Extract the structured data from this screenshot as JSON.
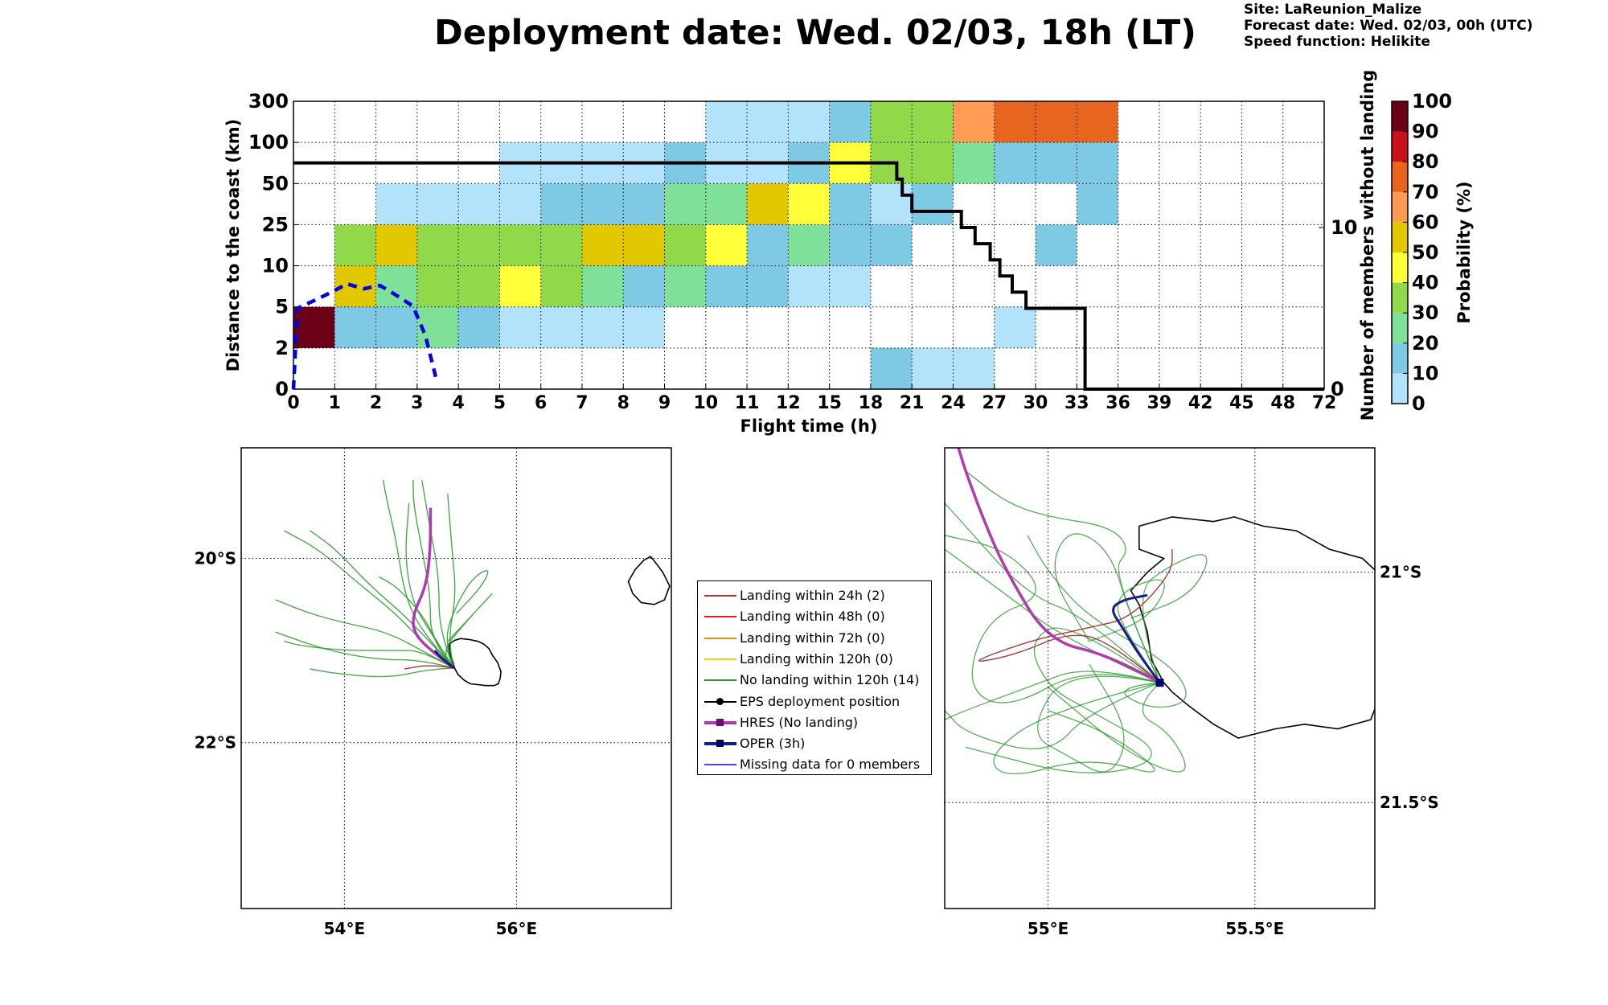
{
  "header": {
    "title": "Deployment date: Wed. 02/03, 18h (LT)",
    "site": "Site: LaReunion_Malize",
    "forecast_date": "Forecast date: Wed. 02/03, 00h (UTC)",
    "speed_function": "Speed function: Helikite"
  },
  "colors": {
    "p0_10": "#b3e3fa",
    "p10_20": "#7ec9e3",
    "p20_30": "#7fe09a",
    "p30_40": "#92d94a",
    "p40_50": "#ffff3a",
    "p50_60": "#e2c800",
    "p60_70": "#ff9b52",
    "p70_80": "#e8651f",
    "p80_90": "#c8111a",
    "p90_100": "#6c0116",
    "members_line": "#000000",
    "blue_dashed": "#0000e0",
    "hres": "#b03ab0",
    "oper": "#1a1a90",
    "green_tracks": "#2a9a2a",
    "red_tracks": "#a83a3a"
  },
  "chart_data": [
    {
      "type": "heatmap",
      "name": "distance-probability",
      "xlabel": "Flight time (h)",
      "ylabel": "Distance to the coast (km)",
      "y2label": "Number of members without landing",
      "colorbar_label": "Probability (%)",
      "x_ticks": [
        "0",
        "1",
        "2",
        "3",
        "4",
        "5",
        "6",
        "7",
        "8",
        "9",
        "10",
        "11",
        "12",
        "15",
        "18",
        "21",
        "24",
        "27",
        "30",
        "33",
        "36",
        "39",
        "42",
        "45",
        "48",
        "72"
      ],
      "y_ticks": [
        "0",
        "2",
        "5",
        "10",
        "25",
        "50",
        "100",
        "300"
      ],
      "y2_ticks": [
        "0",
        "10"
      ],
      "y2_range": [
        0,
        16
      ],
      "colorbar_ticks": [
        "0",
        "10",
        "20",
        "30",
        "40",
        "50",
        "60",
        "70",
        "80",
        "90",
        "100"
      ],
      "grid": true,
      "rows": [
        {
          "y_bin": "0-2",
          "cells": [
            [
              18,
              21,
              "p10_20"
            ],
            [
              21,
              24,
              "p0_10"
            ],
            [
              24,
              27,
              "p0_10"
            ]
          ]
        },
        {
          "y_bin": "2-5",
          "cells": [
            [
              0,
              1,
              "p90_100"
            ],
            [
              1,
              2,
              "p10_20"
            ],
            [
              2,
              3,
              "p10_20"
            ],
            [
              3,
              4,
              "p20_30"
            ],
            [
              4,
              5,
              "p10_20"
            ],
            [
              5,
              6,
              "p0_10"
            ],
            [
              6,
              7,
              "p0_10"
            ],
            [
              7,
              8,
              "p0_10"
            ],
            [
              8,
              9,
              "p0_10"
            ],
            [
              27,
              30,
              "p0_10"
            ]
          ]
        },
        {
          "y_bin": "5-10",
          "cells": [
            [
              1,
              2,
              "p50_60"
            ],
            [
              2,
              3,
              "p20_30"
            ],
            [
              3,
              4,
              "p30_40"
            ],
            [
              4,
              5,
              "p30_40"
            ],
            [
              5,
              6,
              "p40_50"
            ],
            [
              6,
              7,
              "p30_40"
            ],
            [
              7,
              8,
              "p20_30"
            ],
            [
              8,
              9,
              "p10_20"
            ],
            [
              9,
              10,
              "p20_30"
            ],
            [
              10,
              11,
              "p10_20"
            ],
            [
              11,
              12,
              "p10_20"
            ],
            [
              12,
              15,
              "p0_10"
            ],
            [
              15,
              18,
              "p0_10"
            ]
          ]
        },
        {
          "y_bin": "10-25",
          "cells": [
            [
              1,
              2,
              "p30_40"
            ],
            [
              2,
              3,
              "p50_60"
            ],
            [
              3,
              4,
              "p30_40"
            ],
            [
              4,
              5,
              "p30_40"
            ],
            [
              5,
              6,
              "p30_40"
            ],
            [
              6,
              7,
              "p30_40"
            ],
            [
              7,
              8,
              "p50_60"
            ],
            [
              8,
              9,
              "p50_60"
            ],
            [
              9,
              10,
              "p30_40"
            ],
            [
              10,
              11,
              "p40_50"
            ],
            [
              11,
              12,
              "p10_20"
            ],
            [
              12,
              15,
              "p20_30"
            ],
            [
              15,
              18,
              "p10_20"
            ],
            [
              18,
              21,
              "p10_20"
            ],
            [
              30,
              33,
              "p10_20"
            ]
          ]
        },
        {
          "y_bin": "25-50",
          "cells": [
            [
              2,
              3,
              "p0_10"
            ],
            [
              3,
              4,
              "p0_10"
            ],
            [
              4,
              5,
              "p0_10"
            ],
            [
              5,
              6,
              "p0_10"
            ],
            [
              6,
              7,
              "p10_20"
            ],
            [
              7,
              8,
              "p10_20"
            ],
            [
              8,
              9,
              "p10_20"
            ],
            [
              9,
              10,
              "p20_30"
            ],
            [
              10,
              11,
              "p20_30"
            ],
            [
              11,
              12,
              "p50_60"
            ],
            [
              12,
              15,
              "p40_50"
            ],
            [
              15,
              18,
              "p10_20"
            ],
            [
              18,
              21,
              "p0_10"
            ],
            [
              21,
              24,
              "p10_20"
            ],
            [
              33,
              36,
              "p10_20"
            ]
          ]
        },
        {
          "y_bin": "50-100",
          "cells": [
            [
              5,
              6,
              "p0_10"
            ],
            [
              6,
              7,
              "p0_10"
            ],
            [
              7,
              8,
              "p0_10"
            ],
            [
              8,
              9,
              "p0_10"
            ],
            [
              9,
              10,
              "p10_20"
            ],
            [
              10,
              11,
              "p0_10"
            ],
            [
              11,
              12,
              "p0_10"
            ],
            [
              12,
              15,
              "p10_20"
            ],
            [
              15,
              18,
              "p40_50"
            ],
            [
              18,
              21,
              "p30_40"
            ],
            [
              21,
              24,
              "p30_40"
            ],
            [
              24,
              27,
              "p20_30"
            ],
            [
              27,
              30,
              "p10_20"
            ],
            [
              30,
              33,
              "p10_20"
            ],
            [
              33,
              36,
              "p10_20"
            ]
          ]
        },
        {
          "y_bin": "100-300",
          "cells": [
            [
              10,
              11,
              "p0_10"
            ],
            [
              11,
              12,
              "p0_10"
            ],
            [
              12,
              15,
              "p0_10"
            ],
            [
              15,
              18,
              "p10_20"
            ],
            [
              18,
              21,
              "p30_40"
            ],
            [
              21,
              24,
              "p30_40"
            ],
            [
              24,
              27,
              "p60_70"
            ],
            [
              27,
              30,
              "p70_80"
            ],
            [
              30,
              33,
              "p70_80"
            ],
            [
              33,
              36,
              "p70_80"
            ]
          ]
        }
      ],
      "members_without_landing_step": [
        [
          0,
          14
        ],
        [
          19.9,
          14
        ],
        [
          19.9,
          13
        ],
        [
          20.3,
          13
        ],
        [
          20.3,
          12
        ],
        [
          21,
          12
        ],
        [
          21,
          11
        ],
        [
          24.6,
          11
        ],
        [
          24.6,
          10
        ],
        [
          25.6,
          10
        ],
        [
          25.6,
          9
        ],
        [
          26.7,
          9
        ],
        [
          26.7,
          8
        ],
        [
          27.4,
          8
        ],
        [
          27.4,
          7
        ],
        [
          28.3,
          7
        ],
        [
          28.3,
          6
        ],
        [
          29.3,
          6
        ],
        [
          29.3,
          5
        ],
        [
          33.6,
          5
        ],
        [
          33.6,
          0
        ],
        [
          72,
          0
        ]
      ],
      "blue_dashed_curve_km": [
        [
          0,
          0
        ],
        [
          0.1,
          4.9
        ],
        [
          0.6,
          6.0
        ],
        [
          1.0,
          7.0
        ],
        [
          1.3,
          7.8
        ],
        [
          1.7,
          7.2
        ],
        [
          2.1,
          7.6
        ],
        [
          2.5,
          6.4
        ],
        [
          2.9,
          5.1
        ],
        [
          3.2,
          2.9
        ],
        [
          3.45,
          0.6
        ]
      ]
    },
    {
      "type": "map",
      "name": "large-scale-trajectories",
      "x_ticks": [
        "54°E",
        "56°E"
      ],
      "y_ticks": [
        "20°S",
        "22°S"
      ],
      "lon_range": [
        52.8,
        57.8
      ],
      "lat_range": [
        -23.8,
        -18.8
      ]
    },
    {
      "type": "map",
      "name": "zoomed-trajectories",
      "x_ticks": [
        "55°E",
        "55.5°E"
      ],
      "y_ticks": [
        "21°S",
        "21.5°S"
      ],
      "lon_range": [
        54.75,
        55.79
      ],
      "lat_range": [
        -21.73,
        -20.73
      ]
    }
  ],
  "legend": {
    "items": [
      {
        "label": "Landing within 24h (2)",
        "color": "#a83a3a",
        "marker": "none"
      },
      {
        "label": "Landing within 48h (0)",
        "color": "#e02020",
        "marker": "none"
      },
      {
        "label": "Landing within 72h (0)",
        "color": "#f08c00",
        "marker": "none"
      },
      {
        "label": "Landing within 120h (0)",
        "color": "#f0d000",
        "marker": "none"
      },
      {
        "label": "No landing within 120h (14)",
        "color": "#2a9a2a",
        "marker": "none"
      },
      {
        "label": "EPS deployment position",
        "color": "#000000",
        "marker": "circle"
      },
      {
        "label": "HRES (No landing)",
        "color": "#b03ab0",
        "marker": "square",
        "marker_color": "#7a007a"
      },
      {
        "label": "OPER (3h)",
        "color": "#1a1a90",
        "marker": "square",
        "marker_color": "#000070"
      },
      {
        "label": "Missing data for 0 members",
        "color": "#4444ff",
        "marker": "none"
      }
    ]
  }
}
